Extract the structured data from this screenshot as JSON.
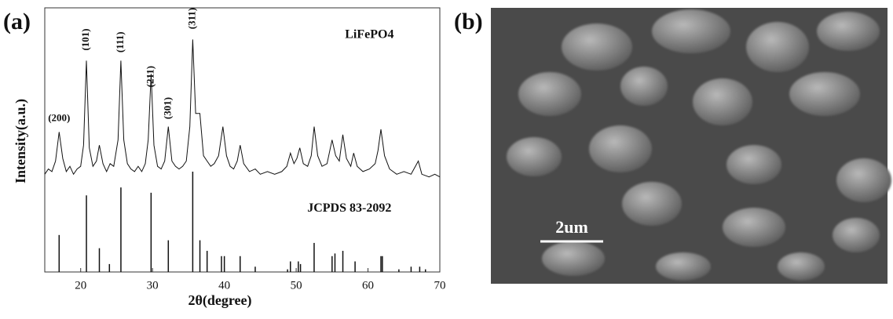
{
  "chart_data": {
    "type": "xrd",
    "panel_label": "(a)",
    "xlabel": "2θ(degree)",
    "ylabel": "Intensity(a.u.)",
    "xlim": [
      15,
      70
    ],
    "xticks": [
      20,
      30,
      40,
      50,
      60,
      70
    ],
    "ylim": [
      0,
      100
    ],
    "series": [
      {
        "name": "LiFePO4",
        "color": "#111111",
        "x": [
          15,
          15.5,
          16,
          16.5,
          17,
          17.5,
          18,
          18.5,
          19,
          19.5,
          20,
          20.4,
          20.8,
          21.2,
          21.7,
          22.2,
          22.6,
          23.1,
          23.6,
          24.1,
          24.6,
          25.2,
          25.6,
          26,
          26.5,
          27,
          27.5,
          28,
          28.5,
          29,
          29.4,
          29.8,
          30.2,
          30.7,
          31.2,
          31.7,
          32.2,
          32.7,
          33.2,
          33.7,
          34.2,
          34.7,
          35.2,
          35.6,
          36,
          36.6,
          37.1,
          37.6,
          38.1,
          38.6,
          39.2,
          39.8,
          40.3,
          40.8,
          41.3,
          41.8,
          42.2,
          42.7,
          43.5,
          44.3,
          45,
          46,
          47,
          48,
          48.7,
          49.2,
          49.7,
          50.1,
          50.5,
          51,
          51.6,
          52.1,
          52.5,
          53,
          53.6,
          54.3,
          55,
          55.5,
          56,
          56.5,
          57,
          57.6,
          58,
          58.5,
          59.3,
          60.2,
          61,
          61.4,
          61.8,
          62.3,
          63,
          64,
          65,
          66,
          67,
          67.5,
          68.5,
          69.3,
          70
        ],
        "values": [
          37,
          39,
          38,
          42,
          53,
          43,
          38,
          40,
          37,
          39,
          40,
          48,
          80,
          47,
          40,
          42,
          48,
          41,
          38,
          41,
          40,
          50,
          80,
          50,
          41,
          39,
          38,
          40,
          38,
          41,
          50,
          75,
          48,
          40,
          39,
          42,
          55,
          42,
          40,
          39,
          40,
          42,
          55,
          88,
          60,
          60,
          44,
          42,
          40,
          41,
          44,
          55,
          44,
          40,
          39,
          42,
          48,
          41,
          38,
          39,
          37,
          38,
          37,
          38,
          40,
          45,
          41,
          43,
          47,
          41,
          40,
          44,
          55,
          44,
          40,
          41,
          50,
          44,
          42,
          52,
          43,
          40,
          45,
          40,
          38,
          39,
          41,
          46,
          54,
          44,
          39,
          37,
          38,
          37,
          42,
          37,
          36,
          37,
          36
        ]
      },
      {
        "name": "JCPDS 83-2092",
        "color": "#111111",
        "style": "stick",
        "x": [
          17,
          20.8,
          22.6,
          24,
          25.6,
          29.8,
          32.2,
          35.6,
          36.6,
          37.6,
          39.6,
          40,
          42.2,
          44.3,
          48.8,
          49.2,
          50.3,
          50.6,
          52.5,
          55,
          55.4,
          56.5,
          58.2,
          61.8,
          62,
          64.3,
          66,
          67.2,
          68
        ],
        "values": [
          14,
          29,
          9,
          3,
          32,
          30,
          12,
          38,
          12,
          8,
          6,
          6,
          6,
          2,
          1,
          4,
          4,
          3,
          11,
          6,
          7,
          8,
          4,
          6,
          6,
          1,
          2,
          2,
          1
        ]
      }
    ],
    "annotations": [
      {
        "text": "(200)",
        "x": 17,
        "y": 58,
        "vertical": false
      },
      {
        "text": "(101)",
        "x": 20.8,
        "y": 88,
        "vertical": true
      },
      {
        "text": "(111)",
        "x": 25.6,
        "y": 87,
        "vertical": true
      },
      {
        "text": "(211)",
        "x": 29.8,
        "y": 74,
        "vertical": true
      },
      {
        "text": "(301)",
        "x": 32.2,
        "y": 62,
        "vertical": true
      },
      {
        "text": "(311)",
        "x": 35.6,
        "y": 96,
        "vertical": true
      }
    ],
    "series_labels": [
      {
        "series": 0,
        "x": 60.2,
        "y": 89.6
      },
      {
        "series": 1,
        "x": 57.4,
        "y": 24
      }
    ]
  },
  "image_panel": {
    "panel_label": "(b)",
    "scale_bar": "2um"
  }
}
